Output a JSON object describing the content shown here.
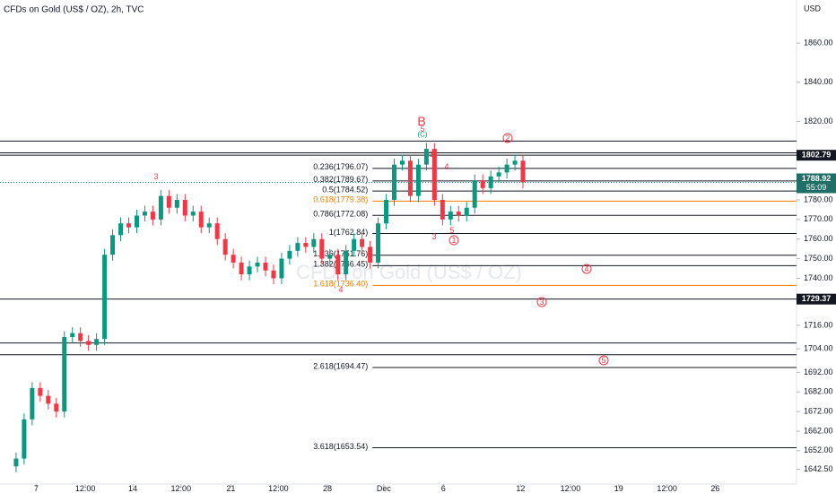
{
  "chart_data": {
    "type": "candlestick",
    "title": "CFDs on Gold (US$ / OZ), 2h, TVC",
    "watermark": "CFDs on Gold (US$ / OZ)",
    "currency": "USD",
    "up_color": "#089981",
    "down_color": "#f23645",
    "xlim": [
      -2,
      97
    ],
    "ylim": [
      1635,
      1882
    ],
    "xticks": [
      {
        "value": 2.5,
        "label": "7"
      },
      {
        "value": 8.6,
        "label": "12:00"
      },
      {
        "value": 14.5,
        "label": "14"
      },
      {
        "value": 20.5,
        "label": "12:00"
      },
      {
        "value": 26.7,
        "label": "21"
      },
      {
        "value": 32.6,
        "label": "12:00"
      },
      {
        "value": 38.7,
        "label": "28"
      },
      {
        "value": 45.7,
        "label": "Dec"
      },
      {
        "value": 53.1,
        "label": "6"
      },
      {
        "value": 62.7,
        "label": "12"
      },
      {
        "value": 68.9,
        "label": "12:00"
      },
      {
        "value": 74.9,
        "label": "19"
      },
      {
        "value": 80.9,
        "label": "12:00"
      },
      {
        "value": 86.9,
        "label": "26"
      }
    ],
    "yticks": [
      {
        "value": 1642.5,
        "label": "1642.50"
      },
      {
        "value": 1652,
        "label": "1652.00"
      },
      {
        "value": 1662,
        "label": "1662.00"
      },
      {
        "value": 1672,
        "label": "1672.00"
      },
      {
        "value": 1682,
        "label": "1682.00"
      },
      {
        "value": 1692,
        "label": "1692.00"
      },
      {
        "value": 1704,
        "label": "1704.00"
      },
      {
        "value": 1716,
        "label": "1716.00"
      },
      {
        "value": 1740,
        "label": "1740.00"
      },
      {
        "value": 1750,
        "label": "1750.00"
      },
      {
        "value": 1760,
        "label": "1760.00"
      },
      {
        "value": 1770,
        "label": "1770.00"
      },
      {
        "value": 1780,
        "label": "1780.00"
      },
      {
        "value": 1820,
        "label": "1820.00"
      },
      {
        "value": 1840,
        "label": "1840.00"
      },
      {
        "value": 1860,
        "label": "1860.00"
      }
    ],
    "open": [
      1644,
      1648,
      1668,
      1684,
      1680,
      1676,
      1672,
      1710,
      1712,
      1708,
      1706,
      1709,
      1752,
      1762,
      1768,
      1766,
      1772,
      1774,
      1770,
      1782,
      1776,
      1780,
      1772,
      1774,
      1766,
      1768,
      1760,
      1752,
      1748,
      1742,
      1746,
      1748,
      1744,
      1740,
      1750,
      1754,
      1758,
      1756,
      1760,
      1750,
      1752,
      1742,
      1754,
      1760,
      1756,
      1748,
      1768,
      1780,
      1798,
      1800,
      1782,
      1798,
      1806,
      1780,
      1770,
      1774,
      1772,
      1776,
      1790,
      1786,
      1792,
      1794,
      1798,
      1800
    ],
    "high": [
      1651,
      1671,
      1687,
      1687,
      1683,
      1679,
      1713,
      1715,
      1715,
      1711,
      1712,
      1755,
      1765,
      1771,
      1771,
      1775,
      1777,
      1777,
      1785,
      1785,
      1783,
      1783,
      1777,
      1777,
      1771,
      1771,
      1763,
      1755,
      1751,
      1749,
      1751,
      1751,
      1747,
      1753,
      1757,
      1761,
      1761,
      1763,
      1763,
      1755,
      1755,
      1757,
      1763,
      1763,
      1759,
      1771,
      1783,
      1801,
      1803,
      1803,
      1801,
      1809,
      1809,
      1783,
      1777,
      1777,
      1779,
      1793,
      1793,
      1795,
      1797,
      1801,
      1803,
      1803
    ],
    "low": [
      1641,
      1645,
      1665,
      1677,
      1673,
      1669,
      1669,
      1707,
      1705,
      1703,
      1703,
      1706,
      1749,
      1759,
      1763,
      1763,
      1769,
      1767,
      1767,
      1773,
      1773,
      1769,
      1769,
      1763,
      1763,
      1757,
      1749,
      1745,
      1739,
      1739,
      1743,
      1741,
      1737,
      1737,
      1747,
      1751,
      1753,
      1753,
      1747,
      1747,
      1739,
      1739,
      1751,
      1753,
      1745,
      1745,
      1765,
      1777,
      1795,
      1779,
      1779,
      1795,
      1777,
      1767,
      1767,
      1769,
      1769,
      1773,
      1783,
      1783,
      1789,
      1791,
      1795,
      1786
    ],
    "close": [
      1648,
      1668,
      1684,
      1680,
      1676,
      1672,
      1710,
      1712,
      1708,
      1706,
      1709,
      1752,
      1762,
      1768,
      1766,
      1772,
      1774,
      1770,
      1782,
      1776,
      1780,
      1772,
      1774,
      1766,
      1768,
      1760,
      1752,
      1748,
      1742,
      1746,
      1748,
      1744,
      1740,
      1750,
      1754,
      1758,
      1756,
      1760,
      1750,
      1752,
      1742,
      1754,
      1760,
      1756,
      1748,
      1768,
      1780,
      1798,
      1800,
      1782,
      1798,
      1806,
      1780,
      1770,
      1774,
      1772,
      1776,
      1790,
      1786,
      1792,
      1794,
      1798,
      1800,
      1789
    ],
    "hlines": [
      1810,
      1804,
      1802.79,
      1729.37,
      1707,
      1701
    ],
    "price_labels": [
      1802.79,
      1729.37
    ],
    "last_price": 1788.92,
    "countdown": "55:09",
    "fib_start": 44.3,
    "fib_levels": [
      {
        "price": 1796.07,
        "label": "0.236(1796.07)",
        "color": "#131722"
      },
      {
        "price": 1789.67,
        "label": "0.382(1789.67)",
        "color": "#131722"
      },
      {
        "price": 1784.52,
        "label": "0.5(1784.52)",
        "color": "#131722"
      },
      {
        "price": 1779.38,
        "label": "0.618(1779.38)",
        "color": "#f57c00"
      },
      {
        "price": 1772.08,
        "label": "0.786(1772.08)",
        "color": "#131722"
      },
      {
        "price": 1762.84,
        "label": "1(1762.84)",
        "color": "#131722"
      },
      {
        "price": 1751.76,
        "label": "1.236(1751.76)",
        "color": "#131722"
      },
      {
        "price": 1746.45,
        "label": "1.382(1746.45)",
        "color": "#131722"
      },
      {
        "price": 1736.4,
        "label": "1.618(1736.40)",
        "color": "#f57c00"
      },
      {
        "price": 1694.47,
        "label": "2.618(1694.47)",
        "color": "#131722"
      },
      {
        "price": 1653.54,
        "label": "3.618(1653.54)",
        "color": "#131722"
      }
    ],
    "annotations": [
      {
        "text": "B",
        "color": "#f23645",
        "circled": false
      },
      {
        "text": "5",
        "color": "#f23645",
        "circled": false
      },
      {
        "text": "(C)",
        "color": "#089981",
        "circled": false
      },
      {
        "text": "2",
        "color": "#f23645",
        "circled": true
      },
      {
        "text": "3",
        "color": "#f23645",
        "circled": false
      },
      {
        "text": "3",
        "color": "#f23645",
        "circled": false
      },
      {
        "text": "4",
        "color": "#f23645",
        "circled": false
      },
      {
        "text": "3",
        "color": "#f23645",
        "circled": false
      },
      {
        "text": "5",
        "color": "#f23645",
        "circled": false
      },
      {
        "text": "1",
        "color": "#f23645",
        "circled": true
      },
      {
        "text": "4",
        "color": "#f23645",
        "circled": false
      },
      {
        "text": "4",
        "color": "#f23645",
        "circled": true
      },
      {
        "text": "3",
        "color": "#f23645",
        "circled": true
      },
      {
        "text": "5",
        "color": "#f23645",
        "circled": true
      }
    ]
  }
}
